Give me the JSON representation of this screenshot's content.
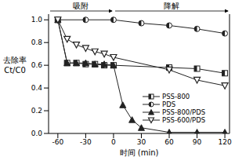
{
  "chart_data": {
    "type": "line",
    "x_label": "时间 (min)",
    "y_label": "去除率 Ct/C0",
    "annotations": [
      "吸附",
      "降解"
    ],
    "xlim": [
      -70,
      125
    ],
    "xticks": [
      -60,
      -30,
      0,
      30,
      60,
      90,
      120
    ],
    "ylim": [
      0,
      1.05
    ],
    "yticks": [
      {
        "value": 0,
        "label": "0.0"
      },
      0.2,
      0.4,
      0.6,
      0.8,
      {
        "value": 1,
        "label": "1.0"
      }
    ],
    "legend": "lower right",
    "series": [
      {
        "name": "PSS-800",
        "color": "#222222",
        "marker": "square",
        "x": [
          -60,
          -50,
          -40,
          -30,
          -20,
          -10,
          0,
          60,
          90,
          120
        ],
        "values": [
          1.0,
          0.62,
          0.62,
          0.61,
          0.61,
          0.6,
          0.6,
          0.58,
          0.57,
          0.53
        ]
      },
      {
        "name": "PDS",
        "color": "#222222",
        "marker": "circle",
        "x": [
          -60,
          -30,
          0,
          30,
          60,
          90,
          120
        ],
        "values": [
          1.0,
          1.0,
          1.0,
          0.97,
          0.95,
          0.92,
          0.88
        ]
      },
      {
        "name": "PSS-800/PDS",
        "color": "#222222",
        "marker": "triangle",
        "x": [
          -60,
          -50,
          -40,
          -30,
          -20,
          -10,
          0,
          10,
          20,
          30,
          60,
          90,
          120
        ],
        "values": [
          1.0,
          0.62,
          0.62,
          0.62,
          0.61,
          0.61,
          0.6,
          0.25,
          0.12,
          0.05,
          0.01,
          0.01,
          0.01
        ]
      },
      {
        "name": "PSS-600/PDS",
        "color": "#222222",
        "marker": "triangle-down",
        "x": [
          -60,
          -50,
          -40,
          -30,
          -20,
          -10,
          0,
          60,
          90,
          120
        ],
        "values": [
          1.0,
          0.83,
          0.78,
          0.75,
          0.72,
          0.7,
          0.67,
          0.56,
          0.47,
          0.42
        ]
      }
    ]
  }
}
